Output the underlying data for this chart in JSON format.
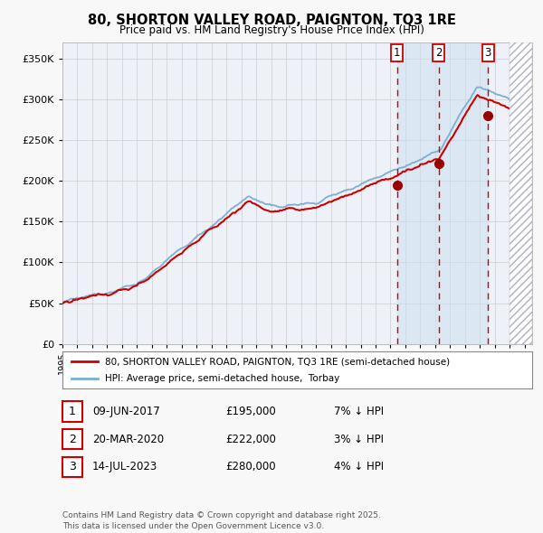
{
  "title": "80, SHORTON VALLEY ROAD, PAIGNTON, TQ3 1RE",
  "subtitle": "Price paid vs. HM Land Registry's House Price Index (HPI)",
  "legend_line1": "80, SHORTON VALLEY ROAD, PAIGNTON, TQ3 1RE (semi-detached house)",
  "legend_line2": "HPI: Average price, semi-detached house,  Torbay",
  "footer": "Contains HM Land Registry data © Crown copyright and database right 2025.\nThis data is licensed under the Open Government Licence v3.0.",
  "transactions": [
    {
      "num": 1,
      "date": "09-JUN-2017",
      "price": 195000,
      "pct": "7%",
      "dir": "↓",
      "year": 2017.44
    },
    {
      "num": 2,
      "date": "20-MAR-2020",
      "price": 222000,
      "pct": "3%",
      "dir": "↓",
      "year": 2020.22
    },
    {
      "num": 3,
      "date": "14-JUL-2023",
      "price": 280000,
      "pct": "4%",
      "dir": "↓",
      "year": 2023.54
    }
  ],
  "hpi_color": "#7ab0d4",
  "price_color": "#cc0000",
  "dot_color": "#990000",
  "background_color": "#f8f8f8",
  "plot_bg_color": "#eef2f8",
  "grid_color": "#cccccc",
  "highlight_bg": "#cce0f0",
  "dashed_color": "#cc0000",
  "hatch_color": "#9999bb",
  "ylim": [
    0,
    370000
  ],
  "xlim_start": 1995.0,
  "xlim_end": 2026.5,
  "future_shade_start": 2025.0
}
